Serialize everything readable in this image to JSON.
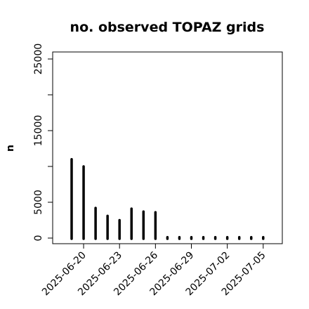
{
  "chart_data": {
    "type": "bar",
    "title": "no. observed TOPAZ grids",
    "xlabel": "",
    "ylabel": "n",
    "ylim": [
      0,
      25000
    ],
    "yticks": [
      0,
      5000,
      15000,
      25000
    ],
    "xticks": [
      "2025-06-20",
      "2025-06-23",
      "2025-06-26",
      "2025-06-29",
      "2025-07-02",
      "2025-07-05"
    ],
    "highlight_tick": "2025-06-26",
    "highlight_color": "#228b22",
    "bar_color": "#000000",
    "grid": false,
    "legend": "none",
    "categories": [
      "2025-06-19",
      "2025-06-20",
      "2025-06-21",
      "2025-06-22",
      "2025-06-23",
      "2025-06-24",
      "2025-06-25",
      "2025-06-26",
      "2025-06-27",
      "2025-06-28",
      "2025-06-29",
      "2025-06-30",
      "2025-07-01",
      "2025-07-02",
      "2025-07-03",
      "2025-07-04",
      "2025-07-05"
    ],
    "values": [
      11000,
      10000,
      4200,
      3100,
      2500,
      4100,
      3700,
      3600,
      0,
      0,
      0,
      0,
      0,
      0,
      0,
      0,
      0
    ]
  }
}
